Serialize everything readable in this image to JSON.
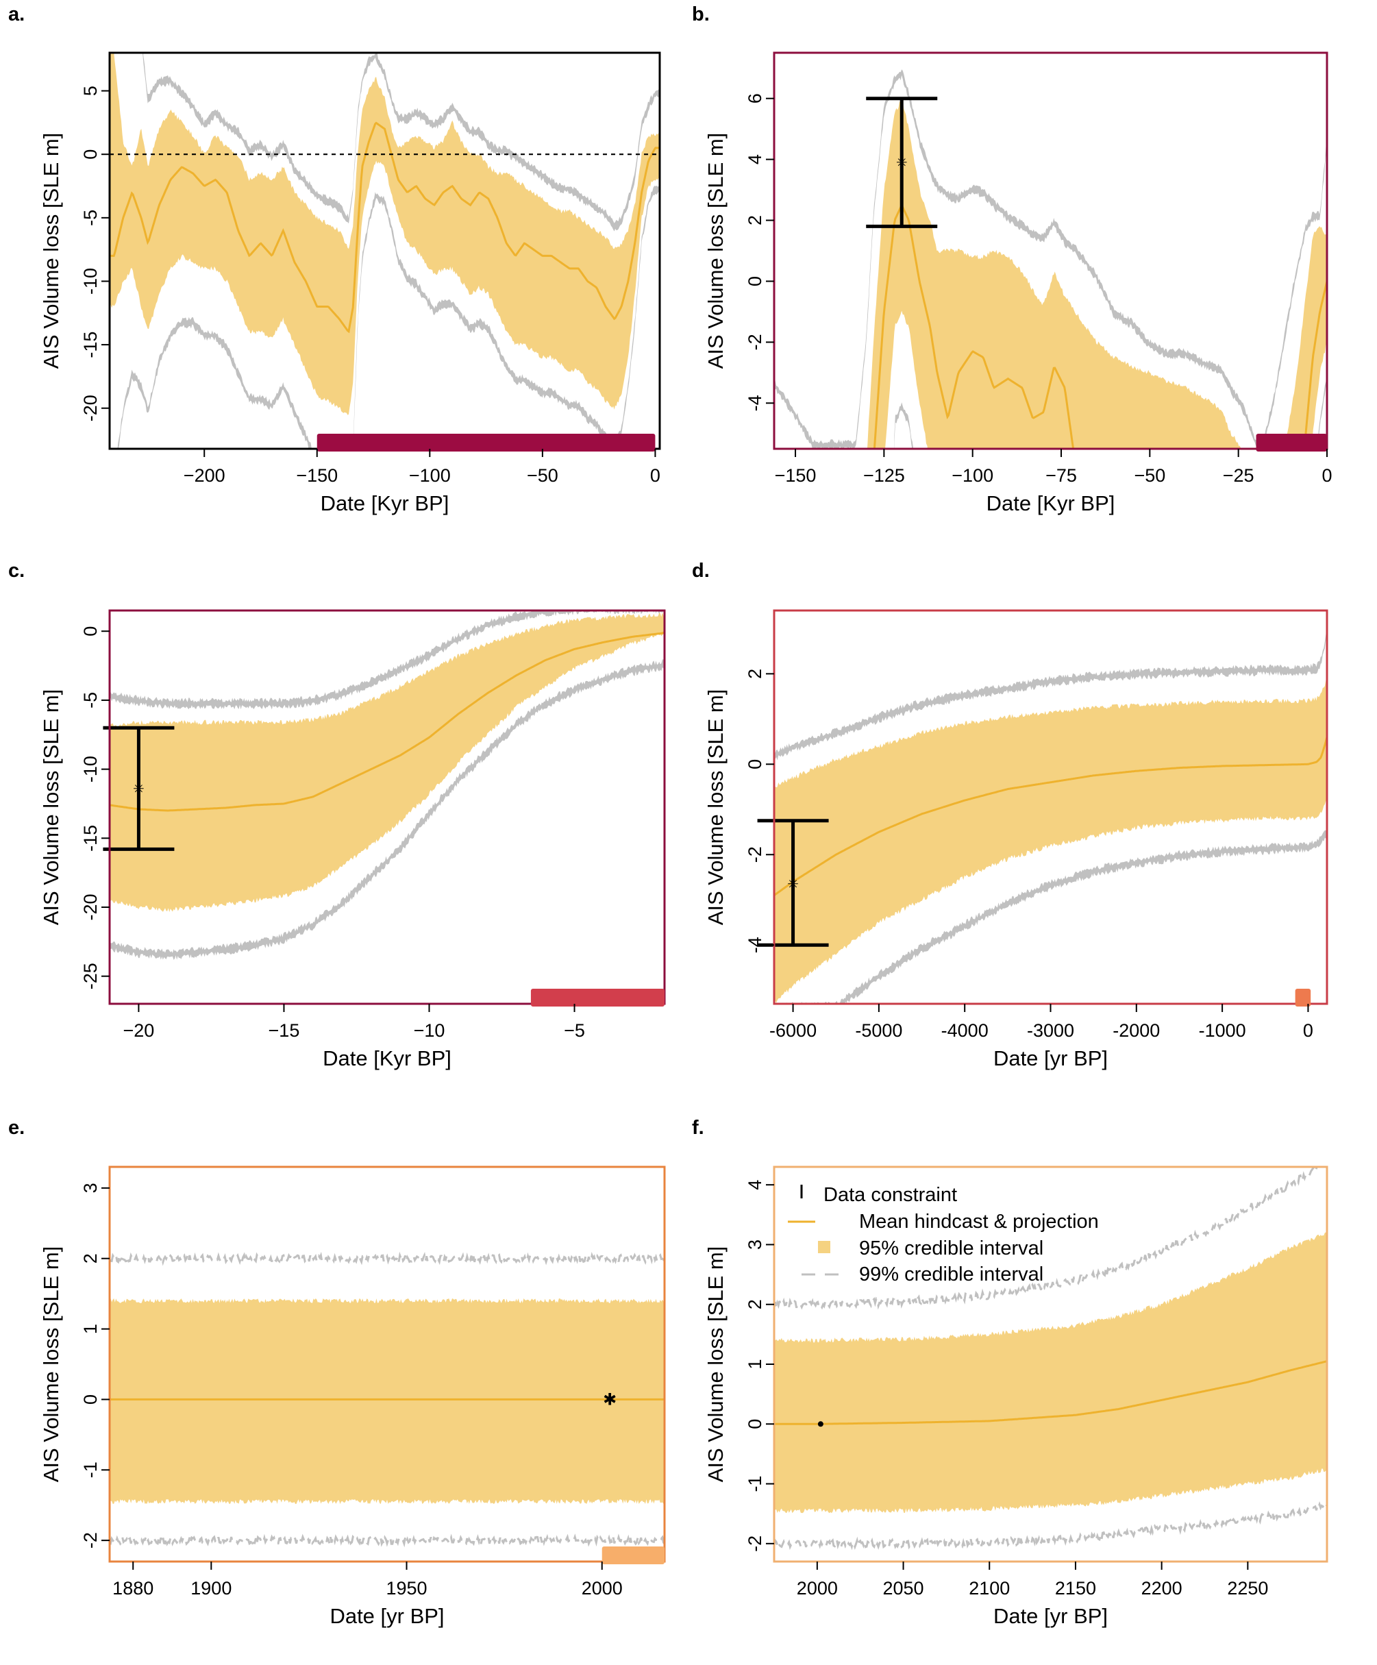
{
  "colors": {
    "band95": "#f5d281",
    "band99": "#c0c0c0",
    "mean": "#eeb22e",
    "constraint": "#000000",
    "frame_a": "#000000",
    "frame_b": "#8c0e3e",
    "frame_c": "#8c0e3e",
    "frame_d": "#c83c47",
    "frame_e": "#e8843e",
    "frame_f": "#f0b070",
    "window_a": "#9c0c42",
    "window_b": "#9c0c42",
    "window_c": "#d23e4c",
    "window_d": "#ee7a4e",
    "window_e": "#f7ae6a"
  },
  "legend": {
    "constraint": "Data constraint",
    "mean": "Mean hindcast & projection",
    "ci95": "95% credible interval",
    "ci99": "99% credible interval"
  },
  "chart_data": [
    {
      "id": "a",
      "label": "a.",
      "type": "area",
      "xlabel": "Date [Kyr BP]",
      "ylabel": "AIS Volume loss [SLE m]",
      "xlim": [
        -242,
        2
      ],
      "ylim": [
        -23.2,
        8
      ],
      "xticks": [
        -200,
        -150,
        -100,
        -50,
        0
      ],
      "xtick_labels": [
        "−200",
        "−150",
        "−100",
        "−50",
        "0"
      ],
      "yticks": [
        5,
        0,
        -5,
        -10,
        -15,
        -20
      ],
      "ytick_labels": [
        "5",
        "0",
        "-5",
        "-10",
        "-15",
        "-20"
      ],
      "zero_line": true,
      "window": [
        -150,
        0
      ],
      "x": [
        -240,
        -236,
        -232,
        -228,
        -225,
        -220,
        -215,
        -210,
        -205,
        -200,
        -195,
        -190,
        -185,
        -180,
        -175,
        -170,
        -165,
        -160,
        -155,
        -150,
        -145,
        -140,
        -136,
        -134,
        -132,
        -130,
        -127,
        -124,
        -120,
        -117,
        -114,
        -110,
        -106,
        -102,
        -98,
        -94,
        -90,
        -86,
        -82,
        -78,
        -74,
        -70,
        -66,
        -62,
        -58,
        -54,
        -50,
        -46,
        -42,
        -38,
        -34,
        -30,
        -26,
        -22,
        -18,
        -15,
        -12,
        -9,
        -6,
        -3,
        0
      ],
      "mean": [
        -8,
        -5,
        -3,
        -5,
        -7,
        -4,
        -2,
        -1,
        -1.5,
        -2.5,
        -2,
        -3,
        -6,
        -8,
        -7,
        -8,
        -6,
        -8.5,
        -10,
        -12,
        -12,
        -13,
        -14,
        -12,
        -6,
        -1,
        1,
        2.5,
        2,
        0,
        -2,
        -3,
        -2.5,
        -3.5,
        -4,
        -3,
        -2.5,
        -3.5,
        -4,
        -3,
        -3.5,
        -5,
        -7,
        -8,
        -7,
        -7.5,
        -8,
        -8,
        -8.5,
        -9,
        -9,
        -10,
        -10.5,
        -12,
        -13,
        -12,
        -10,
        -7,
        -3,
        -0.5,
        0.5
      ],
      "ci95_lo": [
        -12,
        -10,
        -9,
        -12,
        -14,
        -11,
        -9,
        -8,
        -8.5,
        -9,
        -9,
        -10,
        -12,
        -14,
        -14,
        -14.5,
        -13,
        -15,
        -17,
        -19,
        -19.5,
        -20,
        -20.5,
        -18,
        -10,
        -5,
        -2.5,
        -0.5,
        -1,
        -3,
        -5,
        -7,
        -7.5,
        -8.5,
        -9.5,
        -9,
        -9,
        -10,
        -11,
        -10.5,
        -11,
        -12.5,
        -14,
        -15,
        -15,
        -15.5,
        -16,
        -16,
        -16.5,
        -17,
        -17,
        -18,
        -18.5,
        -19.5,
        -20,
        -19,
        -16,
        -11,
        -5,
        -2.5,
        -2
      ],
      "ci95_hi": [
        8,
        1,
        -1,
        2,
        -1,
        2,
        3.5,
        2.5,
        1.5,
        0,
        1.5,
        0.5,
        0,
        -2,
        -1.5,
        -2,
        -1,
        -3,
        -4,
        -5,
        -5.5,
        -6,
        -7.5,
        -5.5,
        0,
        3.5,
        5,
        6,
        4.5,
        2,
        0.5,
        1,
        1.5,
        1,
        0.5,
        1,
        2.5,
        1,
        0,
        0,
        -1,
        -1.5,
        -1.5,
        -2,
        -2.5,
        -3,
        -3.5,
        -4,
        -4.5,
        -4.5,
        -5,
        -5.5,
        -6,
        -6.5,
        -7.5,
        -7,
        -6,
        -4,
        0,
        1.5,
        1.5
      ],
      "ci99_lo": [
        -25,
        -20,
        -17,
        -18,
        -20,
        -16,
        -14,
        -13,
        -13,
        -14,
        -14,
        -15,
        -17,
        -19,
        -19,
        -19.5,
        -18,
        -20,
        -22,
        -24,
        -24.5,
        -25,
        -26,
        -23,
        -13,
        -8,
        -5,
        -3,
        -3.5,
        -5.5,
        -8,
        -9.5,
        -10,
        -11,
        -12,
        -11.5,
        -11.5,
        -12.5,
        -13.5,
        -13,
        -13.5,
        -15,
        -16.5,
        -17.5,
        -17.5,
        -18,
        -18.5,
        -18.5,
        -19,
        -19.5,
        -19.5,
        -20.5,
        -21,
        -22,
        -22.5,
        -21.5,
        -18,
        -13,
        -6.5,
        -3.5,
        -2.5
      ],
      "ci99_hi": [
        12,
        10,
        9,
        9,
        4,
        5.5,
        5.5,
        4.5,
        3.5,
        2,
        3,
        2,
        1.5,
        0,
        0.5,
        -0.5,
        0.5,
        -1.5,
        -2.5,
        -3.5,
        -4,
        -4.5,
        -5.5,
        -3,
        3,
        5.5,
        7,
        7.5,
        6,
        4,
        2.5,
        2.5,
        3,
        2.5,
        2,
        2.5,
        3.5,
        2.5,
        1.5,
        1.5,
        0.5,
        0,
        0,
        -0.5,
        -1,
        -1.5,
        -2,
        -2.5,
        -3,
        -3,
        -3.5,
        -4,
        -4.5,
        -5,
        -6,
        -5.5,
        -4,
        -2,
        2,
        3.5,
        4.5
      ]
    },
    {
      "id": "b",
      "label": "b.",
      "type": "area",
      "xlabel": "Date [Kyr BP]",
      "ylabel": "AIS Volume loss [SLE m]",
      "xlim": [
        -156,
        0
      ],
      "ylim": [
        -5.5,
        7.5
      ],
      "xticks": [
        -150,
        -125,
        -100,
        -75,
        -50,
        -25,
        0
      ],
      "xtick_labels": [
        "−150",
        "−125",
        "−100",
        "−75",
        "−50",
        "−25",
        "0"
      ],
      "yticks": [
        6,
        4,
        2,
        0,
        -2,
        -4
      ],
      "ytick_labels": [
        "6",
        "4",
        "2",
        "0",
        "-2",
        "-4"
      ],
      "window": [
        -20,
        0
      ],
      "constraints": [
        {
          "x": -120,
          "y": 3.9,
          "lo": 1.8,
          "hi": 6.0
        }
      ],
      "x": [
        -156,
        -150,
        -145,
        -140,
        -136,
        -133,
        -130,
        -128,
        -125,
        -122,
        -120,
        -118,
        -115,
        -112,
        -110,
        -107,
        -104,
        -100,
        -97,
        -94,
        -90,
        -86,
        -83,
        -80,
        -77,
        -74,
        -71,
        -68,
        -65,
        -60,
        -55,
        -50,
        -45,
        -40,
        -35,
        -30,
        -27,
        -24,
        -22,
        -20,
        -18,
        -15,
        -12,
        -9,
        -6,
        -4,
        -2,
        0
      ],
      "mean": [
        -20,
        -20,
        -20,
        -20,
        -20,
        -16,
        -11,
        -6,
        -1,
        2,
        2.5,
        2,
        0,
        -1.5,
        -3,
        -4.5,
        -3,
        -2.3,
        -2.5,
        -3.5,
        -3.2,
        -3.5,
        -4.5,
        -4.3,
        -2.8,
        -3.5,
        -6,
        -8,
        -9,
        -10,
        -10,
        -10,
        -10,
        -10,
        -10,
        -10,
        -10,
        -10,
        -10,
        -10,
        -10,
        -10,
        -10,
        -8,
        -5,
        -2.5,
        -1,
        0
      ],
      "ci95_lo": [
        -20,
        -20,
        -20,
        -20,
        -20,
        -20,
        -20,
        -13,
        -6,
        -1.5,
        -1,
        -1.5,
        -4,
        -6,
        -8,
        -9,
        -9,
        -9,
        -9,
        -9,
        -9,
        -9,
        -9,
        -9,
        -9,
        -9,
        -9,
        -9,
        -9,
        -9,
        -9,
        -9,
        -9,
        -9,
        -9,
        -9,
        -9,
        -9,
        -9,
        -9,
        -9,
        -9,
        -9,
        -9,
        -8,
        -5,
        -3,
        -2
      ],
      "ci95_hi": [
        -20,
        -20,
        -20,
        -20,
        -20,
        -12,
        -6,
        -2,
        3,
        5.5,
        6,
        5,
        3,
        2,
        1,
        1,
        1,
        0.8,
        0.8,
        1,
        0.8,
        0.3,
        -0.3,
        -0.8,
        0.3,
        -0.5,
        -1,
        -1.5,
        -2,
        -2.5,
        -2.8,
        -3,
        -3.3,
        -3.5,
        -3.8,
        -4.2,
        -5,
        -5.5,
        -6,
        -6.5,
        -7,
        -7,
        -5.5,
        -3.5,
        -0.5,
        1.5,
        1.8,
        1.5
      ],
      "ci99_lo": [
        -20,
        -20,
        -20,
        -20,
        -20,
        -20,
        -20,
        -20,
        -20,
        -4.5,
        -4,
        -4.5,
        -7,
        -9,
        -11,
        -12,
        -12,
        -12,
        -12,
        -12,
        -12,
        -12,
        -12,
        -12,
        -12,
        -12,
        -12,
        -12,
        -12,
        -12,
        -12,
        -12,
        -12,
        -12,
        -12,
        -12,
        -12,
        -12,
        -12,
        -12,
        -12,
        -12,
        -12,
        -12,
        -10,
        -7,
        -4.5,
        -3
      ],
      "ci99_hi": [
        -3.5,
        -4.5,
        -5.5,
        -5.5,
        -5.5,
        -5.5,
        -2,
        2,
        5.5,
        6.5,
        6.7,
        6,
        4.5,
        3.5,
        3,
        2.7,
        2.6,
        2.9,
        2.8,
        2.4,
        2,
        1.7,
        1.4,
        1.3,
        1.8,
        1.2,
        0.9,
        0.5,
        0,
        -1.2,
        -1.5,
        -2.2,
        -2.5,
        -2.5,
        -2.8,
        -3,
        -3.7,
        -4.2,
        -4.8,
        -5.5,
        -5.5,
        -4,
        -2,
        0,
        1.6,
        2,
        2,
        4.5
      ]
    },
    {
      "id": "c",
      "label": "c.",
      "type": "area",
      "xlabel": "Date [Kyr BP]",
      "ylabel": "AIS Volume loss [SLE m]",
      "xlim": [
        -21,
        -1.9
      ],
      "ylim": [
        -27,
        1.5
      ],
      "xticks": [
        -20,
        -15,
        -10,
        -5
      ],
      "xtick_labels": [
        "−20",
        "−15",
        "−10",
        "−5"
      ],
      "yticks": [
        0,
        -5,
        -10,
        -15,
        -20,
        -25
      ],
      "ytick_labels": [
        "0",
        "-5",
        "-10",
        "-15",
        "-20",
        "-25"
      ],
      "window": [
        -6.5,
        -1.9
      ],
      "constraints": [
        {
          "x": -20,
          "y": -11.4,
          "lo": -15.8,
          "hi": -7.0
        }
      ],
      "x": [
        -21,
        -20,
        -19,
        -18,
        -17,
        -16,
        -15,
        -14,
        -13,
        -12,
        -11,
        -10,
        -9,
        -8,
        -7,
        -6,
        -5,
        -4,
        -3,
        -2,
        -1.9
      ],
      "mean": [
        -12.6,
        -12.9,
        -13.0,
        -12.9,
        -12.8,
        -12.6,
        -12.5,
        -12.0,
        -11.0,
        -10.0,
        -9.0,
        -7.7,
        -6.0,
        -4.5,
        -3.2,
        -2.1,
        -1.3,
        -0.8,
        -0.4,
        -0.15,
        -0.1
      ],
      "ci95_lo": [
        -19.5,
        -20.0,
        -20.2,
        -20.0,
        -19.8,
        -19.5,
        -19.2,
        -18.5,
        -17.0,
        -15.5,
        -13.8,
        -11.8,
        -9.5,
        -7.5,
        -5.5,
        -4.0,
        -2.7,
        -1.8,
        -0.9,
        -0.2,
        -0.1
      ],
      "ci95_hi": [
        -6.8,
        -6.6,
        -6.6,
        -6.6,
        -6.6,
        -6.6,
        -6.6,
        -6.4,
        -5.9,
        -5.0,
        -4.0,
        -2.9,
        -1.8,
        -0.9,
        -0.2,
        0.4,
        0.8,
        1.0,
        1.1,
        1.2,
        1.2
      ],
      "ci99_lo": [
        -22.5,
        -23.0,
        -23.2,
        -23.0,
        -22.8,
        -22.5,
        -22.0,
        -21.0,
        -19.5,
        -17.5,
        -15.5,
        -13.0,
        -10.5,
        -8.5,
        -6.5,
        -5.0,
        -4.0,
        -3.2,
        -2.6,
        -2.2,
        -2.2
      ],
      "ci99_hi": [
        -5.0,
        -5.3,
        -5.5,
        -5.5,
        -5.5,
        -5.5,
        -5.5,
        -5.3,
        -4.8,
        -4.0,
        -3.0,
        -2.0,
        -0.8,
        0.2,
        0.8,
        1.2,
        1.3,
        1.4,
        1.4,
        1.4,
        1.4
      ]
    },
    {
      "id": "d",
      "label": "d.",
      "type": "area",
      "xlabel": "Date [yr BP]",
      "ylabel": "AIS Volume loss [SLE m]",
      "xlim": [
        -6220,
        220
      ],
      "ylim": [
        -5.3,
        3.4
      ],
      "xticks": [
        -6000,
        -5000,
        -4000,
        -3000,
        -2000,
        -1000,
        0
      ],
      "xtick_labels": [
        "-6000",
        "-5000",
        "-4000",
        "-3000",
        "-2000",
        "-1000",
        "0"
      ],
      "yticks": [
        2,
        0,
        -2,
        -4
      ],
      "ytick_labels": [
        "2",
        "0",
        "-2",
        "-4"
      ],
      "window": [
        -150,
        30
      ],
      "constraints": [
        {
          "x": -6000,
          "y": -2.65,
          "lo": -4.0,
          "hi": -1.25
        }
      ],
      "x": [
        -6220,
        -6000,
        -5500,
        -5000,
        -4500,
        -4000,
        -3500,
        -3000,
        -2500,
        -2000,
        -1500,
        -1000,
        -500,
        0,
        100,
        150,
        200,
        220
      ],
      "mean": [
        -2.9,
        -2.6,
        -2.0,
        -1.5,
        -1.1,
        -0.8,
        -0.55,
        -0.4,
        -0.25,
        -0.15,
        -0.08,
        -0.04,
        -0.02,
        0.0,
        0.05,
        0.15,
        0.45,
        0.6
      ],
      "ci95_lo": [
        -5.3,
        -4.9,
        -4.2,
        -3.5,
        -3.0,
        -2.5,
        -2.1,
        -1.8,
        -1.6,
        -1.4,
        -1.3,
        -1.25,
        -1.2,
        -1.2,
        -1.15,
        -1.1,
        -0.9,
        -0.8
      ],
      "ci95_hi": [
        -0.5,
        -0.3,
        0.1,
        0.4,
        0.7,
        0.9,
        1.05,
        1.15,
        1.25,
        1.3,
        1.35,
        1.38,
        1.4,
        1.4,
        1.45,
        1.55,
        1.8,
        1.9
      ],
      "ci99_lo": [
        -5.3,
        -5.3,
        -5.3,
        -4.6,
        -4.0,
        -3.5,
        -3.0,
        -2.6,
        -2.3,
        -2.1,
        -1.95,
        -1.85,
        -1.8,
        -1.75,
        -1.7,
        -1.6,
        -1.5,
        -1.4
      ],
      "ci99_hi": [
        0.1,
        0.3,
        0.6,
        0.95,
        1.25,
        1.45,
        1.6,
        1.75,
        1.85,
        1.92,
        1.95,
        1.98,
        2.0,
        2.0,
        2.05,
        2.2,
        2.6,
        3.0
      ]
    },
    {
      "id": "e",
      "label": "e.",
      "type": "area",
      "xlabel": "Date [yr BP]",
      "ylabel": "AIS Volume loss [SLE m]",
      "xlim": [
        1874,
        2016
      ],
      "ylim": [
        -2.3,
        3.3
      ],
      "xticks": [
        1880,
        1900,
        1950,
        2000
      ],
      "xtick_labels": [
        "1880",
        "1900",
        "1950",
        "2000"
      ],
      "yticks": [
        3,
        2,
        1,
        0,
        -1,
        -2
      ],
      "ytick_labels": [
        "3",
        "2",
        "1",
        "0",
        "-1",
        "-2"
      ],
      "window": [
        2000,
        2016
      ],
      "constraints": [
        {
          "x": 2002,
          "y": 0.0,
          "lo": 0.0,
          "hi": 0.0
        }
      ],
      "dashed99": true,
      "x": [
        1874,
        2016
      ],
      "mean": [
        0.0,
        0.0
      ],
      "ci95_lo": [
        -1.45,
        -1.45
      ],
      "ci95_hi": [
        1.4,
        1.4
      ],
      "ci99_lo": [
        -2.0,
        -2.0
      ],
      "ci99_hi": [
        2.0,
        2.0
      ]
    },
    {
      "id": "f",
      "label": "f.",
      "type": "area",
      "xlabel": "Date [yr BP]",
      "ylabel": "AIS Volume loss [SLE m]",
      "xlim": [
        1975,
        2296
      ],
      "ylim": [
        -2.3,
        4.3
      ],
      "xticks": [
        2000,
        2050,
        2100,
        2150,
        2200,
        2250
      ],
      "xtick_labels": [
        "2000",
        "2050",
        "2100",
        "2150",
        "2200",
        "2250"
      ],
      "yticks": [
        4,
        3,
        2,
        1,
        0,
        -1,
        -2
      ],
      "ytick_labels": [
        "4",
        "3",
        "2",
        "1",
        "0",
        "-1",
        "-2"
      ],
      "constraints": [
        {
          "x": 2002,
          "y": 0.0,
          "lo": 0.0,
          "hi": 0.0
        }
      ],
      "dashed99": true,
      "legend_position": "top-left",
      "x": [
        1975,
        2000,
        2050,
        2100,
        2150,
        2175,
        2200,
        2225,
        2250,
        2275,
        2296
      ],
      "mean": [
        0.0,
        0.0,
        0.02,
        0.05,
        0.15,
        0.25,
        0.4,
        0.55,
        0.7,
        0.9,
        1.05
      ],
      "ci95_lo": [
        -1.45,
        -1.45,
        -1.45,
        -1.42,
        -1.35,
        -1.3,
        -1.2,
        -1.1,
        -1.0,
        -0.9,
        -0.75
      ],
      "ci95_hi": [
        1.4,
        1.4,
        1.42,
        1.5,
        1.65,
        1.8,
        2.0,
        2.3,
        2.6,
        2.95,
        3.2
      ],
      "ci99_lo": [
        -2.0,
        -2.0,
        -2.0,
        -1.98,
        -1.92,
        -1.85,
        -1.75,
        -1.7,
        -1.6,
        -1.5,
        -1.35
      ],
      "ci99_hi": [
        2.0,
        2.0,
        2.05,
        2.15,
        2.4,
        2.6,
        2.9,
        3.2,
        3.6,
        4.0,
        4.4
      ]
    }
  ]
}
